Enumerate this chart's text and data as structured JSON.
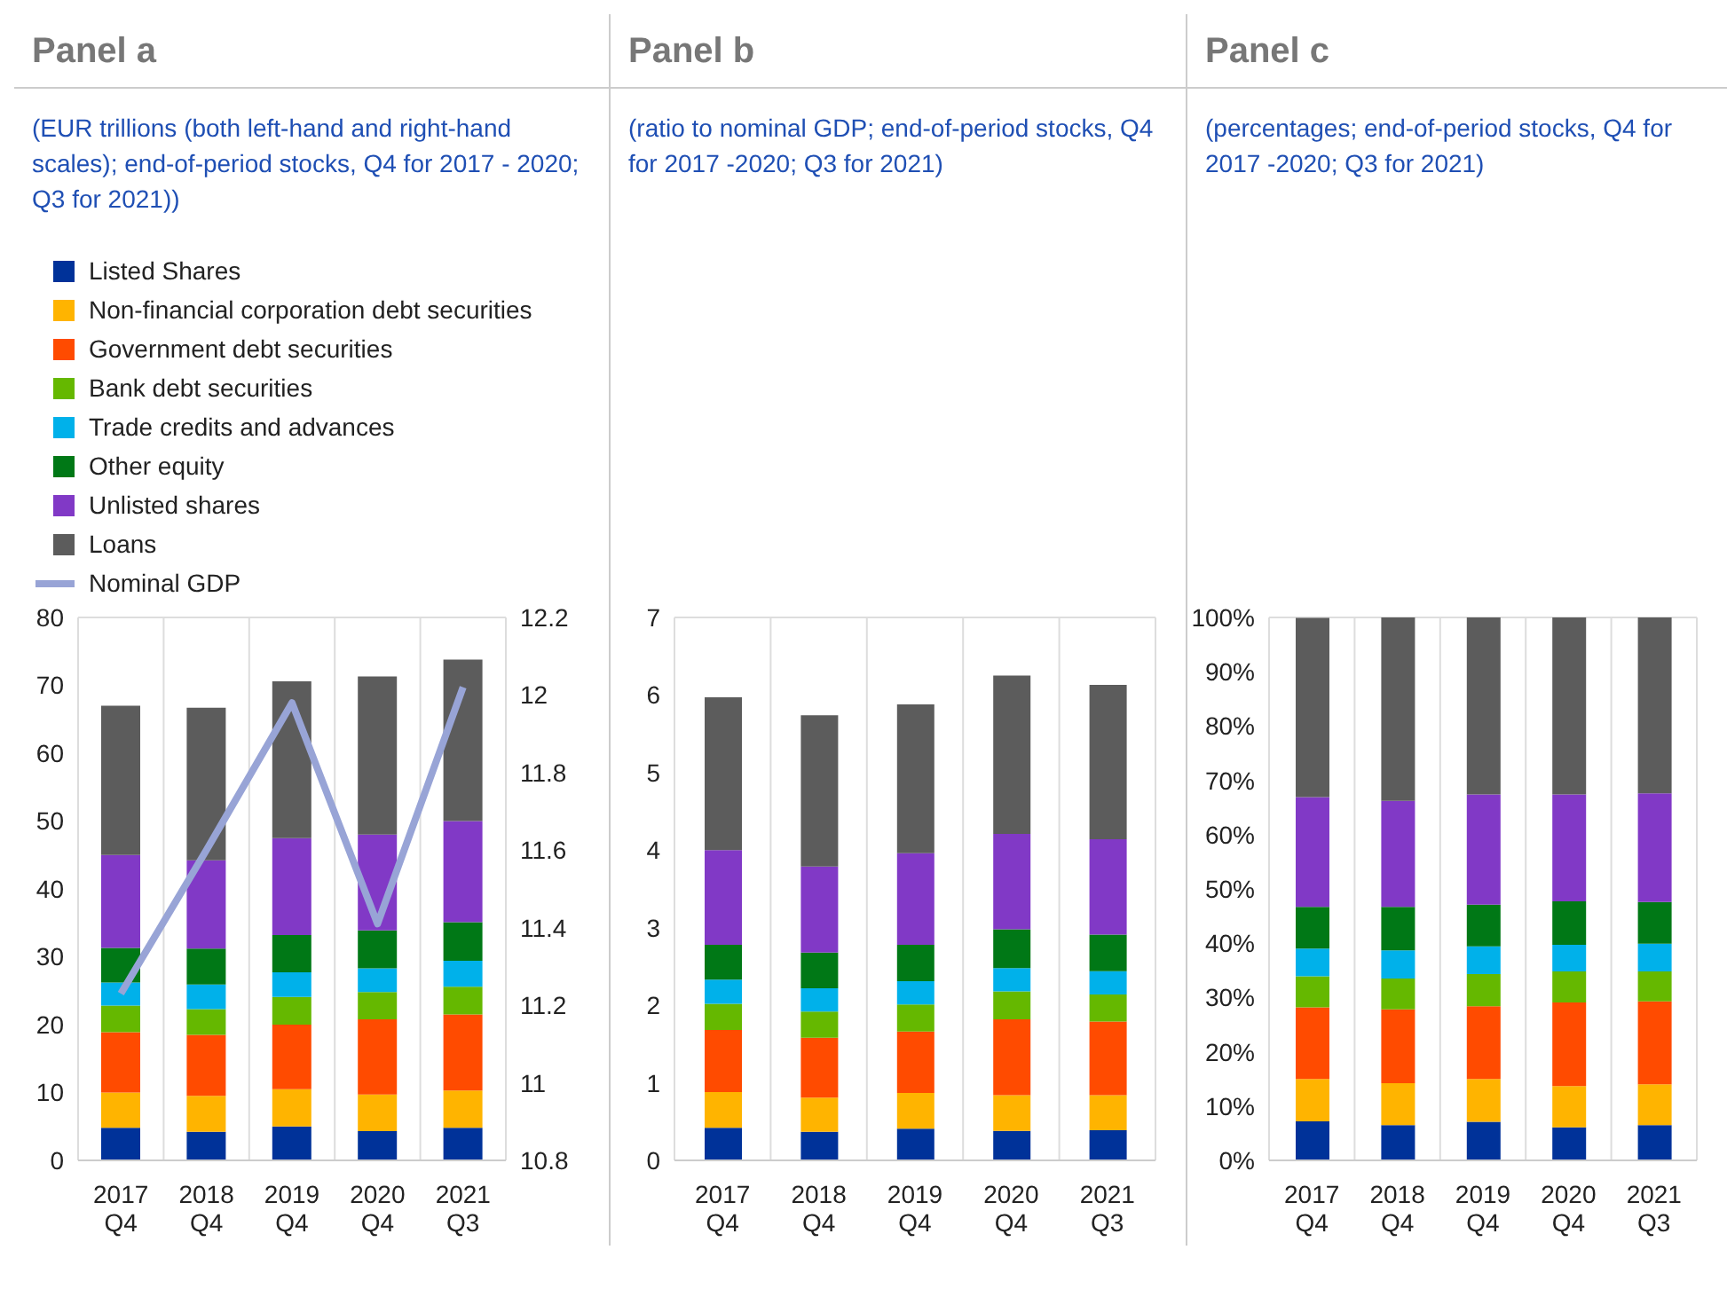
{
  "chart_data": [
    {
      "type": "bar",
      "title": "Panel a",
      "subtitle": "(EUR trillions (both left-hand and right-hand scales); end-of-period stocks, Q4 for 2017 - 2020; Q3 for 2021))",
      "categories": [
        "2017 Q4",
        "2018 Q4",
        "2019 Q4",
        "2020 Q4",
        "2021 Q3"
      ],
      "stacked": true,
      "grid": true,
      "legend": "top left",
      "ylim": [
        0,
        80
      ],
      "yticks": [
        0,
        10,
        20,
        30,
        40,
        50,
        60,
        70,
        80
      ],
      "y2lim": [
        10.8,
        12.2
      ],
      "y2ticks": [
        10.8,
        11,
        11.2,
        11.4,
        11.6,
        11.8,
        12,
        12.2
      ],
      "marker": "none",
      "series": [
        {
          "name": "Listed Shares",
          "color": "#003299",
          "values": [
            4.8,
            4.2,
            5.0,
            4.3,
            4.8
          ]
        },
        {
          "name": "Non-financial corporation debt securities",
          "color": "#ffb400",
          "values": [
            5.2,
            5.3,
            5.5,
            5.4,
            5.5
          ]
        },
        {
          "name": "Government debt securities",
          "color": "#ff4b00",
          "values": [
            8.9,
            9.0,
            9.5,
            11.1,
            11.2
          ]
        },
        {
          "name": "Bank debt securities",
          "color": "#65b800",
          "values": [
            3.9,
            3.8,
            4.1,
            4.0,
            4.1
          ]
        },
        {
          "name": "Trade credits and advances",
          "color": "#00b1ea",
          "values": [
            3.4,
            3.6,
            3.6,
            3.5,
            3.8
          ]
        },
        {
          "name": "Other equity",
          "color": "#007816",
          "values": [
            5.1,
            5.3,
            5.5,
            5.6,
            5.7
          ]
        },
        {
          "name": "Unlisted shares",
          "color": "#8139c6",
          "values": [
            13.7,
            13.0,
            14.3,
            14.1,
            14.9
          ]
        },
        {
          "name": "Loans",
          "color": "#5c5c5c",
          "values": [
            22.0,
            22.5,
            23.1,
            23.3,
            23.8
          ]
        },
        {
          "name": "Nominal GDP",
          "type": "line",
          "axis": "y2",
          "color": "#98a4d6",
          "values": [
            11.23,
            11.6,
            11.98,
            11.41,
            12.02
          ]
        }
      ]
    },
    {
      "type": "bar",
      "title": "Panel b",
      "subtitle": "(ratio to nominal GDP; end-of-period stocks, Q4 for 2017 -2020; Q3 for 2021)",
      "categories": [
        "2017 Q4",
        "2018 Q4",
        "2019 Q4",
        "2020 Q4",
        "2021 Q3"
      ],
      "stacked": true,
      "grid": true,
      "ylim": [
        0,
        7
      ],
      "yticks": [
        0,
        1,
        2,
        3,
        4,
        5,
        6,
        7
      ],
      "series": [
        {
          "color": "#003299",
          "values": [
            0.42,
            0.37,
            0.41,
            0.38,
            0.39
          ]
        },
        {
          "color": "#ffb400",
          "values": [
            0.46,
            0.44,
            0.46,
            0.46,
            0.45
          ]
        },
        {
          "color": "#ff4b00",
          "values": [
            0.8,
            0.77,
            0.79,
            0.98,
            0.95
          ]
        },
        {
          "color": "#65b800",
          "values": [
            0.34,
            0.34,
            0.35,
            0.36,
            0.35
          ]
        },
        {
          "color": "#00b1ea",
          "values": [
            0.31,
            0.3,
            0.3,
            0.3,
            0.3
          ]
        },
        {
          "color": "#007816",
          "values": [
            0.45,
            0.46,
            0.47,
            0.5,
            0.47
          ]
        },
        {
          "color": "#8139c6",
          "values": [
            1.22,
            1.11,
            1.18,
            1.23,
            1.23
          ]
        },
        {
          "color": "#5c5c5c",
          "values": [
            1.97,
            1.95,
            1.92,
            2.04,
            1.99
          ]
        }
      ]
    },
    {
      "type": "bar",
      "title": "Panel c",
      "subtitle": "(percentages; end-of-period stocks, Q4 for 2017 -2020; Q3 for 2021)",
      "categories": [
        "2017 Q4",
        "2018 Q4",
        "2019 Q4",
        "2020 Q4",
        "2021 Q3"
      ],
      "stacked": true,
      "grid": true,
      "ylim": [
        0,
        100
      ],
      "yticks": [
        {
          "value": 0,
          "label": "0%"
        },
        {
          "value": 10,
          "label": "10%"
        },
        {
          "value": 20,
          "label": "20%"
        },
        {
          "value": 30,
          "label": "30%"
        },
        {
          "value": 40,
          "label": "40%"
        },
        {
          "value": 50,
          "label": "50%"
        },
        {
          "value": 60,
          "label": "60%"
        },
        {
          "value": 70,
          "label": "70%"
        },
        {
          "value": 80,
          "label": "80%"
        },
        {
          "value": 90,
          "label": "90%"
        },
        {
          "value": 100,
          "label": "100%"
        }
      ],
      "series": [
        {
          "color": "#003299",
          "values": [
            7.2,
            6.5,
            7.1,
            6.1,
            6.5
          ]
        },
        {
          "color": "#ffb400",
          "values": [
            7.8,
            7.7,
            7.9,
            7.6,
            7.5
          ]
        },
        {
          "color": "#ff4b00",
          "values": [
            13.2,
            13.6,
            13.4,
            15.4,
            15.3
          ]
        },
        {
          "color": "#65b800",
          "values": [
            5.7,
            5.7,
            5.9,
            5.7,
            5.5
          ]
        },
        {
          "color": "#00b1ea",
          "values": [
            5.1,
            5.2,
            5.1,
            4.9,
            5.1
          ]
        },
        {
          "color": "#007816",
          "values": [
            7.7,
            8.0,
            7.7,
            8.0,
            7.7
          ]
        },
        {
          "color": "#8139c6",
          "values": [
            20.2,
            19.5,
            20.3,
            19.7,
            20.0
          ]
        },
        {
          "color": "#5c5c5c",
          "values": [
            33.0,
            33.8,
            32.6,
            32.6,
            32.4
          ]
        }
      ]
    }
  ]
}
